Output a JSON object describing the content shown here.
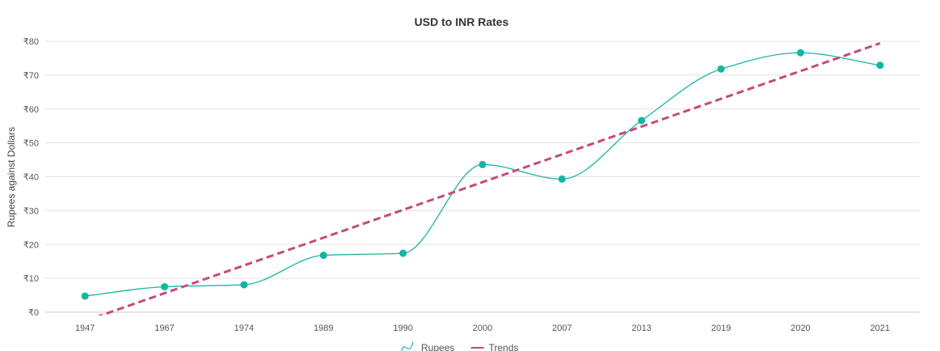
{
  "chart_data": {
    "type": "line",
    "title": "USD to INR Rates",
    "xlabel": "",
    "ylabel": "Rupees against Dollars",
    "categories": [
      "1947",
      "1967",
      "1974",
      "1989",
      "1990",
      "2000",
      "2007",
      "2013",
      "2019",
      "2020",
      "2021"
    ],
    "y_tick_labels": [
      "₹0",
      "₹10",
      "₹20",
      "₹30",
      "₹40",
      "₹50",
      "₹60",
      "₹70",
      "₹80"
    ],
    "ylim": [
      0,
      80
    ],
    "y_step": 10,
    "grid": true,
    "legend_position": "bottom",
    "series": [
      {
        "name": "Rupees",
        "style": "spline",
        "color": "#1ab5a5",
        "marker_color": "#0fb8a0",
        "values": [
          4.76,
          7.5,
          8.1,
          16.8,
          17.4,
          43.6,
          39.3,
          56.6,
          71.8,
          76.6,
          72.9
        ]
      },
      {
        "name": "Trends",
        "style": "dashed",
        "color": "#c44b7a",
        "values": [
          -2.6,
          5.6,
          13.8,
          22.0,
          30.2,
          38.4,
          46.6,
          54.8,
          63.0,
          71.2,
          79.4
        ]
      }
    ]
  }
}
